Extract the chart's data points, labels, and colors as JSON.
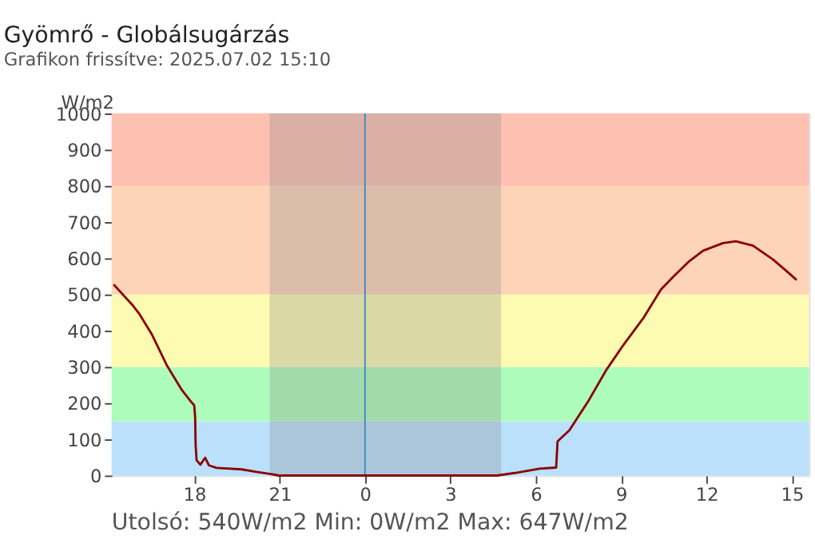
{
  "chart_data": {
    "type": "line",
    "title": "Gyömrő - Globálsugárzás",
    "subtitle": "Grafikon frissítve: 2025.07.02 15:10",
    "ylabel": "W/m2",
    "x": [
      "2025-07-01T15:10",
      "2025-07-01T15:49",
      "2025-07-01T16:05",
      "2025-07-01T16:31",
      "2025-07-01T17:02",
      "2025-07-01T17:34",
      "2025-07-01T17:55",
      "2025-07-01T18:00",
      "2025-07-01T18:02",
      "2025-07-01T18:03",
      "2025-07-01T18:05",
      "2025-07-01T18:13",
      "2025-07-01T18:23",
      "2025-07-01T18:31",
      "2025-07-01T18:47",
      "2025-07-01T19:40",
      "2025-07-01T20:11",
      "2025-07-01T20:47",
      "2025-07-01T20:58",
      "2025-07-02T04:38",
      "2025-07-02T05:16",
      "2025-07-02T06:08",
      "2025-07-02T06:43",
      "2025-07-02T06:46",
      "2025-07-02T07:11",
      "2025-07-02T07:52",
      "2025-07-02T08:29",
      "2025-07-02T09:05",
      "2025-07-02T09:48",
      "2025-07-02T10:24",
      "2025-07-02T10:50",
      "2025-07-02T11:22",
      "2025-07-02T11:53",
      "2025-07-02T12:35",
      "2025-07-02T13:02",
      "2025-07-02T13:38",
      "2025-07-02T14:20",
      "2025-07-02T14:51",
      "2025-07-02T15:10"
    ],
    "series": [
      {
        "color": "#8b0000",
        "values": [
          528,
          472,
          445,
          389,
          305,
          236,
          201,
          194,
          160,
          83,
          42,
          30,
          49,
          28,
          21,
          17,
          10,
          3,
          0,
          0,
          7,
          19,
          22,
          94,
          125,
          208,
          292,
          361,
          437,
          514,
          549,
          590,
          621,
          642,
          647,
          635,
          597,
          562,
          540
        ]
      }
    ],
    "xlim": [
      "2025-07-01T15:06",
      "2025-07-02T15:36"
    ],
    "xticks": [
      {
        "value": "2025-07-01T18:00",
        "label": "18"
      },
      {
        "value": "2025-07-01T21:00",
        "label": "21"
      },
      {
        "value": "2025-07-02T00:00",
        "label": "0"
      },
      {
        "value": "2025-07-02T03:00",
        "label": "3"
      },
      {
        "value": "2025-07-02T06:00",
        "label": "6"
      },
      {
        "value": "2025-07-02T09:00",
        "label": "9"
      },
      {
        "value": "2025-07-02T12:00",
        "label": "12"
      },
      {
        "value": "2025-07-02T15:00",
        "label": "15"
      }
    ],
    "ylim": [
      0,
      1000
    ],
    "yticks": [
      0,
      100,
      200,
      300,
      400,
      500,
      600,
      700,
      800,
      900,
      1000
    ],
    "bands": [
      {
        "axis": "y",
        "from": 0,
        "to": 150,
        "color": "#bae0fb"
      },
      {
        "axis": "y",
        "from": 150,
        "to": 300,
        "color": "#adfcbb"
      },
      {
        "axis": "y",
        "from": 300,
        "to": 500,
        "color": "#fdfbb2"
      },
      {
        "axis": "y",
        "from": 500,
        "to": 800,
        "color": "#fed4b8"
      },
      {
        "axis": "y",
        "from": 800,
        "to": 1000,
        "color": "#fdc1b1"
      },
      {
        "axis": "x",
        "from": "2025-07-01T20:39",
        "to": "2025-07-02T04:47",
        "color": "#8a8a8a"
      }
    ],
    "ref_lines": [
      {
        "axis": "x",
        "value": "2025-07-02T00:00",
        "color": "#3c8ac4"
      }
    ],
    "annotations": [
      "Utolsó: 540W/m2  Min: 0W/m2  Max: 647W/m2"
    ],
    "grid": false
  }
}
